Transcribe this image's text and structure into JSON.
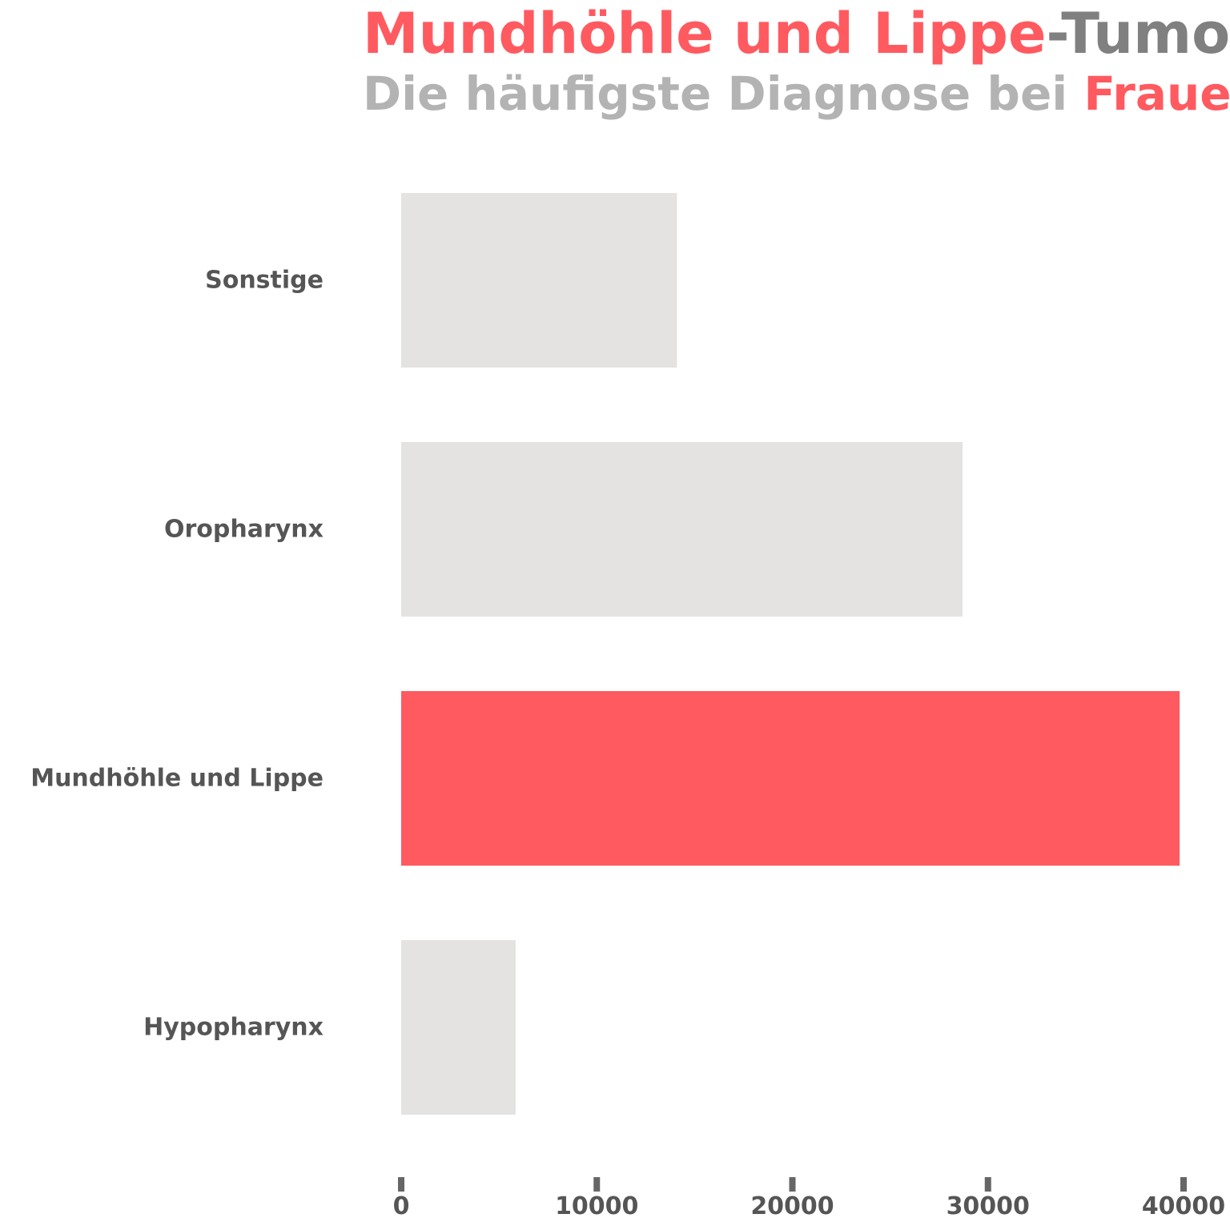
{
  "title": {
    "highlight": "Mundhöhle und Lippe",
    "rest": "-Tumor",
    "highlight_color": "#ff5a60",
    "rest_color": "#808080"
  },
  "subtitle": {
    "text": "Die häufigste Diagnose bei ",
    "highlight": "Frauen",
    "text_color": "#b3b3b3",
    "highlight_color": "#ff5a60"
  },
  "chart_data": {
    "type": "bar",
    "orientation": "horizontal",
    "categories": [
      "Sonstige",
      "Oropharynx",
      "Mundhöhle und Lippe",
      "Hypopharynx"
    ],
    "values": [
      14100,
      28700,
      39800,
      5850
    ],
    "highlight_category": "Mundhöhle und Lippe",
    "xlim": [
      0,
      40000
    ],
    "xticks": [
      0,
      10000,
      20000,
      30000,
      40000
    ],
    "xlabel": "",
    "ylabel": "",
    "grid": false,
    "colors": {
      "bar": "#e4e3e1",
      "highlight": "#ff5a60",
      "label": "#555555",
      "tick": "#666666"
    }
  }
}
